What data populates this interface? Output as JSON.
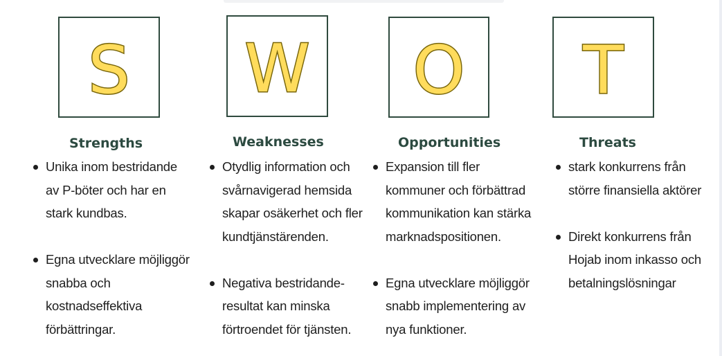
{
  "quadrants": [
    {
      "letter": "S",
      "heading": "Strengths",
      "items": [
        "Unika inom bestridande av P-böter och har en stark kundbas.",
        "Egna utvecklare möjliggör snabba och kostnadseffektiva förbättringar."
      ]
    },
    {
      "letter": "W",
      "heading": "Weaknesses",
      "items": [
        "Otydlig information och svårnavigerad hemsida skapar osäkerhet och fler kundtjänstärenden.",
        "Negativa bestridande-resultat kan minska förtroendet för tjänsten."
      ]
    },
    {
      "letter": "O",
      "heading": "Opportunities",
      "items": [
        "Expansion till fler kommuner och förbättrad kommunikation kan stärka marknadspositionen.",
        "Egna utvecklare möjliggör snabb implementering av nya funktioner."
      ]
    },
    {
      "letter": "T",
      "heading": "Threats",
      "items": [
        "stark konkurrens från större finansiella aktörer",
        "Direkt konkurrens från Hojab inom inkasso och betalningslösningar"
      ]
    }
  ],
  "colors": {
    "letter_fill": "#ffdc5c",
    "letter_stroke": "#77650a",
    "box_border": "#2f4a3e",
    "heading": "#2c4a40"
  }
}
